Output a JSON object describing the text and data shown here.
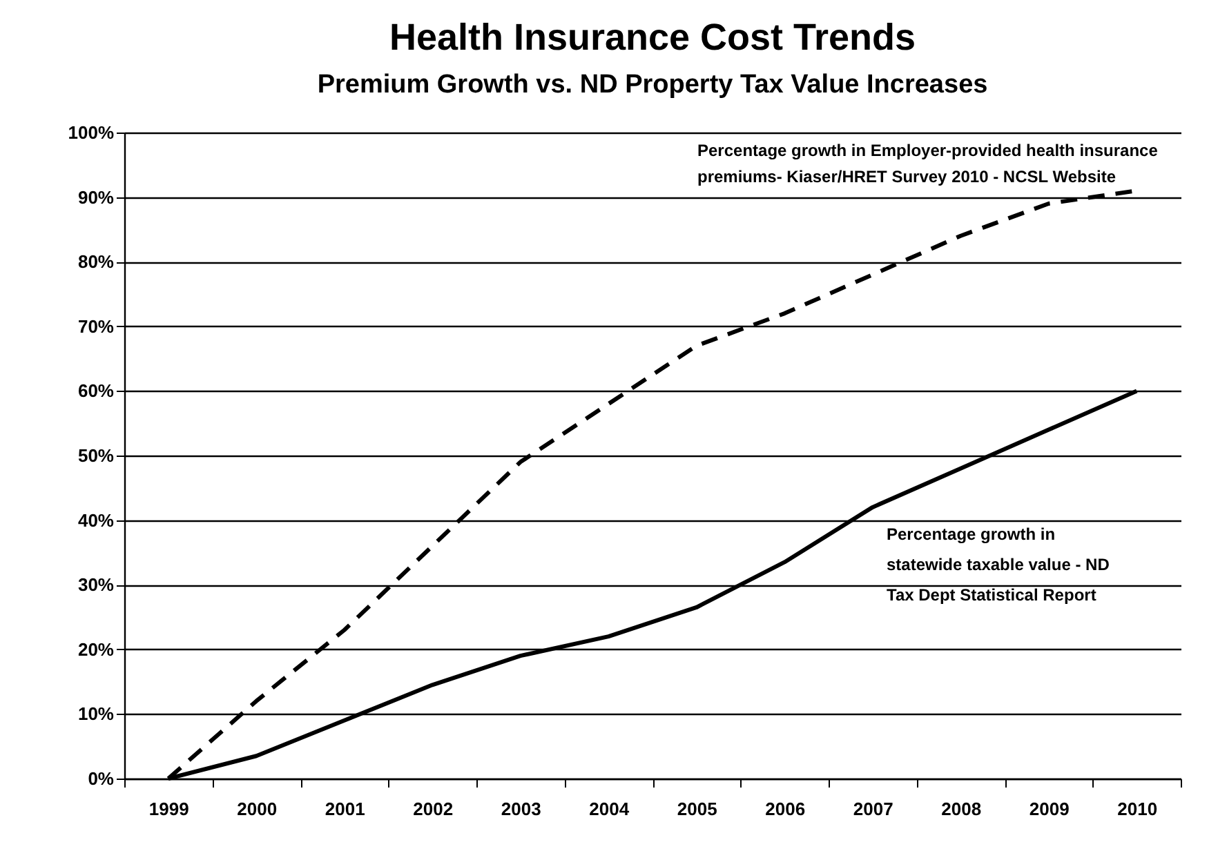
{
  "chart_data": {
    "type": "line",
    "title": "Health Insurance Cost Trends",
    "subtitle": "Premium Growth vs. ND Property Tax Value Increases",
    "categories": [
      "1999",
      "2000",
      "2001",
      "2002",
      "2003",
      "2004",
      "2005",
      "2006",
      "2007",
      "2008",
      "2009",
      "2010"
    ],
    "series": [
      {
        "name": "Percentage growth in Employer-provided health insurance premiums- Kiaser/HRET Survey 2010 - NCSL Website",
        "color": "#000000",
        "line_style": "dashed",
        "values": [
          0,
          12,
          23,
          36,
          49,
          58,
          67,
          72,
          78,
          84,
          89,
          91
        ]
      },
      {
        "name": "Percentage growth in statewide taxable value - ND Tax Dept Statistical Report",
        "color": "#000000",
        "line_style": "solid",
        "values": [
          0,
          3.5,
          9,
          14.5,
          19,
          22,
          26.5,
          33.5,
          42,
          48,
          54,
          60
        ]
      }
    ],
    "ylim": [
      0,
      100
    ],
    "yticks": [
      {
        "value": 0,
        "label": "0%"
      },
      {
        "value": 10,
        "label": "10%"
      },
      {
        "value": 20,
        "label": "20%"
      },
      {
        "value": 30,
        "label": "30%"
      },
      {
        "value": 40,
        "label": "40%"
      },
      {
        "value": 50,
        "label": "50%"
      },
      {
        "value": 60,
        "label": "60%"
      },
      {
        "value": 70,
        "label": "70%"
      },
      {
        "value": 80,
        "label": "80%"
      },
      {
        "value": 90,
        "label": "90%"
      },
      {
        "value": 100,
        "label": "100%"
      }
    ],
    "grid": "y",
    "marker": "none"
  }
}
